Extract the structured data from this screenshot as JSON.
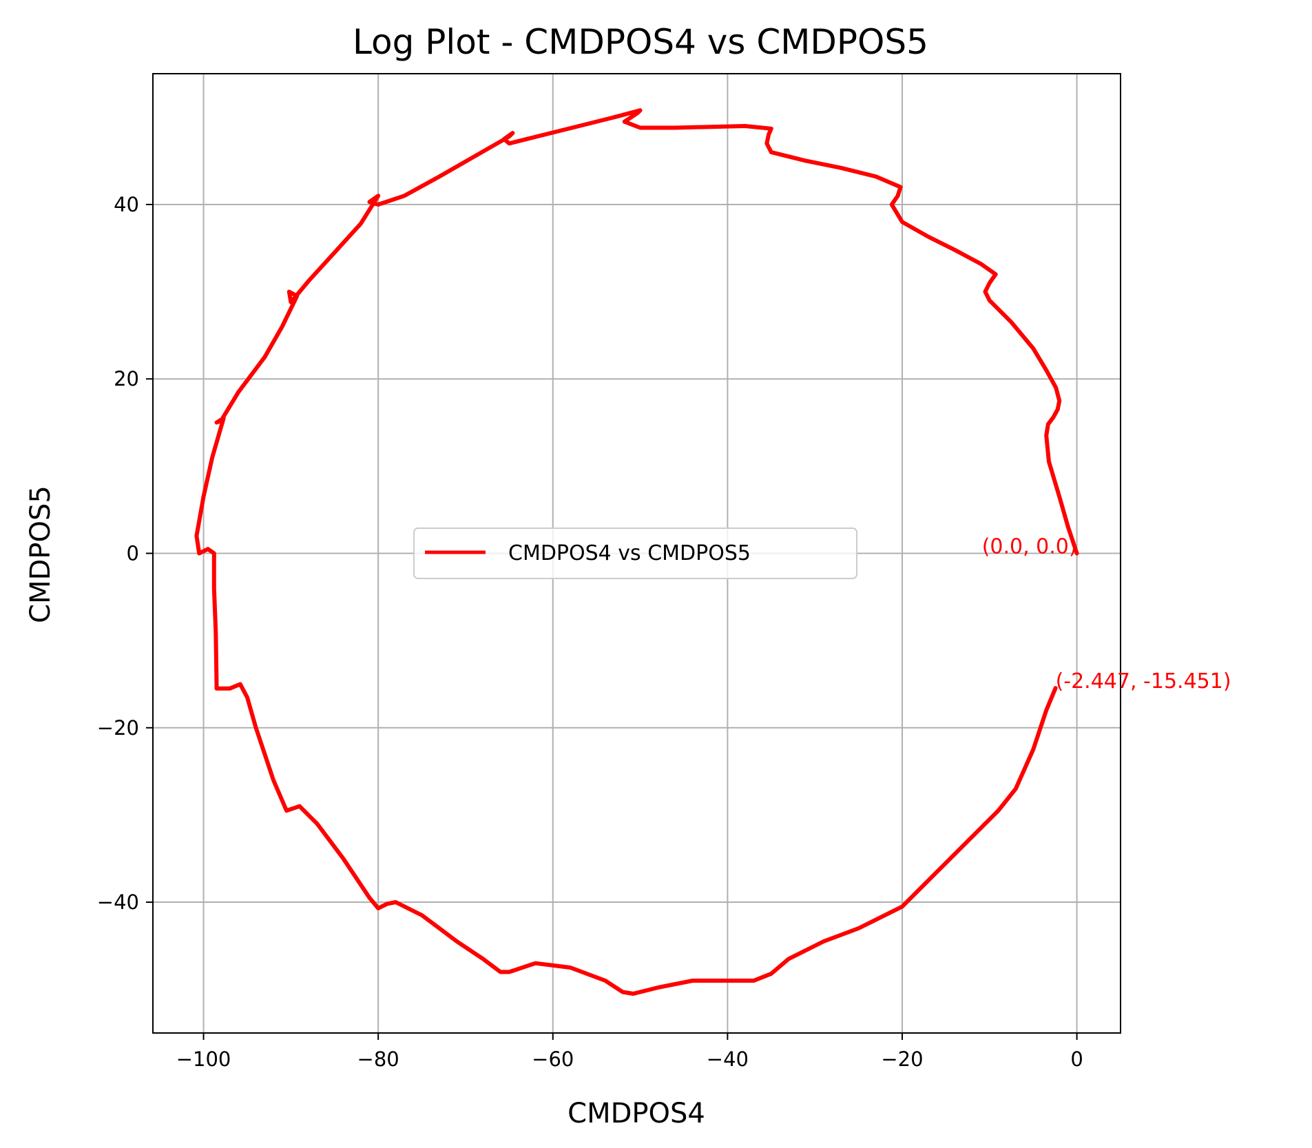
{
  "chart_data": {
    "type": "line",
    "title": "Log Plot - CMDPOS4 vs CMDPOS5",
    "xlabel": "CMDPOS4",
    "ylabel": "CMDPOS5",
    "xlim": [
      -105.8,
      5.0
    ],
    "ylim": [
      -55.0,
      55.0
    ],
    "xticks": [
      -100,
      -80,
      -60,
      -40,
      -20,
      0
    ],
    "xtick_labels": [
      "−100",
      "−80",
      "−60",
      "−40",
      "−20",
      "0"
    ],
    "yticks": [
      -40,
      -20,
      0,
      20,
      40
    ],
    "ytick_labels": [
      "−40",
      "−20",
      "0",
      "20",
      "40"
    ],
    "grid": true,
    "legend_position": "center",
    "color": "#ff0000",
    "series": [
      {
        "name": "CMDPOS4 vs CMDPOS5",
        "x": [
          0.0,
          -1.0,
          -2.0,
          -3.2,
          -3.5,
          -3.3,
          -2.7,
          -2.2,
          -2.0,
          -2.4,
          -3.5,
          -5.0,
          -7.5,
          -10.0,
          -10.5,
          -10.0,
          -9.3,
          -11.0,
          -14.0,
          -17.0,
          -20.0,
          -21.2,
          -20.5,
          -20.2,
          -23.0,
          -27.0,
          -31.0,
          -35.0,
          -35.5,
          -35.3,
          -35.0,
          -38.0,
          -42.0,
          -46.0,
          -50.0,
          -51.8,
          -50.3,
          -50.0,
          -53.0,
          -57.0,
          -61.0,
          -65.0,
          -65.6,
          -64.6,
          -65.0,
          -69.0,
          -73.0,
          -77.0,
          -80.0,
          -81.0,
          -80.0,
          -82.0,
          -85.0,
          -88.0,
          -90.0,
          -90.2,
          -89.3,
          -91.0,
          -93.0,
          -96.0,
          -98.0,
          -98.5,
          -97.7,
          -99.0,
          -100.0,
          -100.8,
          -100.5,
          -99.5,
          -98.8,
          -98.8,
          -98.6,
          -98.5,
          -97.0,
          -95.8,
          -95.0,
          -94.0,
          -92.0,
          -90.5,
          -89.0,
          -87.0,
          -84.0,
          -81.0,
          -80.0,
          -79.0,
          -78.0,
          -75.0,
          -71.0,
          -68.0,
          -66.0,
          -65.0,
          -62.0,
          -58.0,
          -54.0,
          -52.0,
          -50.8,
          -48.0,
          -44.0,
          -40.0,
          -37.0,
          -35.0,
          -33.0,
          -29.0,
          -25.0,
          -20.0,
          -16.0,
          -12.0,
          -9.0,
          -7.0,
          -5.0,
          -3.5,
          -2.447
        ],
        "y": [
          0.0,
          3.0,
          6.5,
          10.5,
          13.5,
          14.8,
          15.6,
          16.5,
          17.5,
          19.0,
          21.0,
          23.5,
          26.5,
          29.0,
          30.0,
          31.0,
          32.0,
          33.2,
          34.8,
          36.3,
          38.0,
          40.0,
          41.0,
          42.0,
          43.2,
          44.2,
          45.0,
          46.0,
          47.0,
          48.0,
          48.7,
          49.0,
          48.9,
          48.8,
          48.8,
          49.5,
          50.5,
          50.8,
          50.0,
          49.0,
          48.0,
          47.0,
          47.5,
          48.2,
          47.8,
          45.5,
          43.2,
          41.0,
          40.0,
          40.3,
          41.0,
          37.8,
          34.5,
          31.2,
          28.8,
          30.0,
          29.5,
          26.0,
          22.5,
          18.5,
          15.2,
          15.0,
          15.5,
          11.0,
          6.5,
          2.0,
          0.0,
          0.5,
          0.0,
          -4.0,
          -9.0,
          -15.5,
          -15.5,
          -15.0,
          -16.5,
          -20.0,
          -26.0,
          -29.5,
          -29.0,
          -31.0,
          -35.0,
          -39.5,
          -40.7,
          -40.2,
          -40.0,
          -41.5,
          -44.5,
          -46.5,
          -48.0,
          -48.0,
          -47.0,
          -47.5,
          -49.0,
          -50.3,
          -50.5,
          -49.8,
          -49.0,
          -49.0,
          -49.0,
          -48.2,
          -46.5,
          -44.5,
          -43.0,
          -40.5,
          -36.5,
          -32.5,
          -29.5,
          -27.0,
          -22.5,
          -18.0,
          -15.451
        ]
      }
    ],
    "annotations": [
      {
        "text": "(0.0, 0.0)",
        "x": 0.0,
        "y": 0.0
      },
      {
        "text": "(-2.447, -15.451)",
        "x": -2.447,
        "y": -15.451
      }
    ]
  }
}
